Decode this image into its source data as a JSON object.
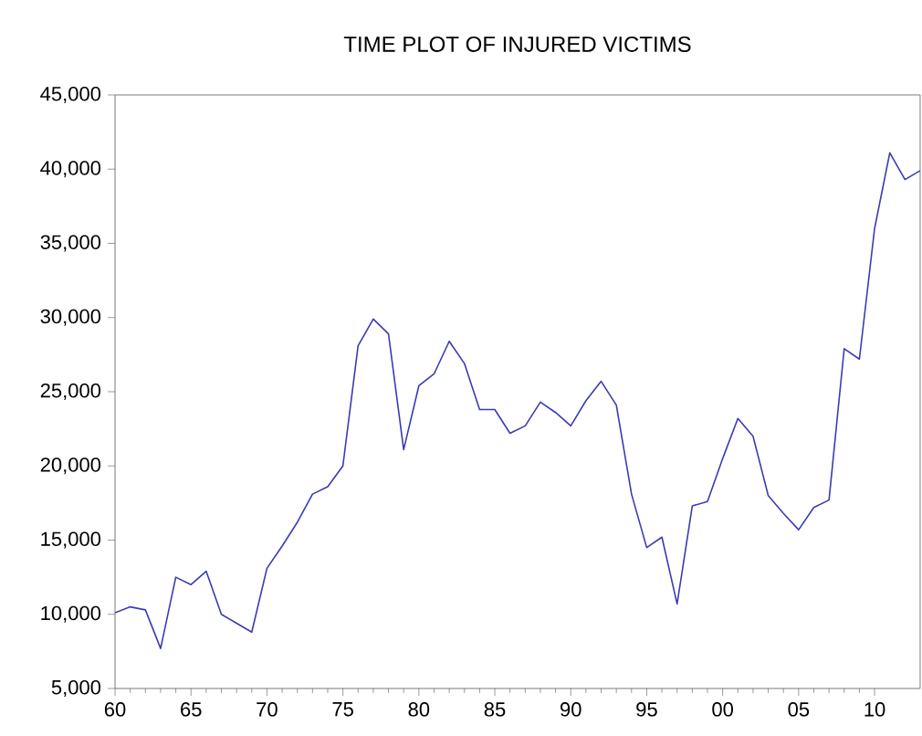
{
  "chart_data": {
    "type": "line",
    "title": "TIME PLOT OF INJURED VICTIMS",
    "x": [
      1960,
      1961,
      1962,
      1963,
      1964,
      1965,
      1966,
      1967,
      1968,
      1969,
      1970,
      1971,
      1972,
      1973,
      1974,
      1975,
      1976,
      1977,
      1978,
      1979,
      1980,
      1981,
      1982,
      1983,
      1984,
      1985,
      1986,
      1987,
      1988,
      1989,
      1990,
      1991,
      1992,
      1993,
      1994,
      1995,
      1996,
      1997,
      1998,
      1999,
      2000,
      2001,
      2002,
      2003,
      2004,
      2005,
      2006,
      2007,
      2008,
      2009,
      2010,
      2011,
      2012,
      2013
    ],
    "series": [
      {
        "color": "#3b3bb5",
        "values": [
          10100,
          10500,
          10300,
          7700,
          12500,
          12000,
          12900,
          10000,
          9400,
          8800,
          13100,
          14600,
          16200,
          18100,
          18600,
          20000,
          28100,
          29900,
          28900,
          21100,
          25400,
          26200,
          28400,
          26900,
          23800,
          23800,
          22200,
          22700,
          24300,
          23600,
          22700,
          24400,
          25700,
          24100,
          18100,
          14500,
          15200,
          10700,
          17300,
          17600,
          20500,
          23200,
          22000,
          18000,
          16800,
          15700,
          17200,
          17700,
          27900,
          27200,
          36000,
          41100,
          39300,
          39900
        ]
      }
    ],
    "xlim": [
      1960,
      2013
    ],
    "ylim": [
      5000,
      45000
    ],
    "xticks": [
      {
        "value": 1960,
        "label": "60"
      },
      {
        "value": 1965,
        "label": "65"
      },
      {
        "value": 1970,
        "label": "70"
      },
      {
        "value": 1975,
        "label": "75"
      },
      {
        "value": 1980,
        "label": "80"
      },
      {
        "value": 1985,
        "label": "85"
      },
      {
        "value": 1990,
        "label": "90"
      },
      {
        "value": 1995,
        "label": "95"
      },
      {
        "value": 2000,
        "label": "00"
      },
      {
        "value": 2005,
        "label": "05"
      },
      {
        "value": 2010,
        "label": "10"
      }
    ],
    "yticks": [
      {
        "value": 5000,
        "label": "5,000"
      },
      {
        "value": 10000,
        "label": "10,000"
      },
      {
        "value": 15000,
        "label": "15,000"
      },
      {
        "value": 20000,
        "label": "20,000"
      },
      {
        "value": 25000,
        "label": "25,000"
      },
      {
        "value": 30000,
        "label": "30,000"
      },
      {
        "value": 35000,
        "label": "35,000"
      },
      {
        "value": 40000,
        "label": "40,000"
      },
      {
        "value": 45000,
        "label": "45,000"
      }
    ],
    "marker": "none",
    "line_style": "solid"
  }
}
